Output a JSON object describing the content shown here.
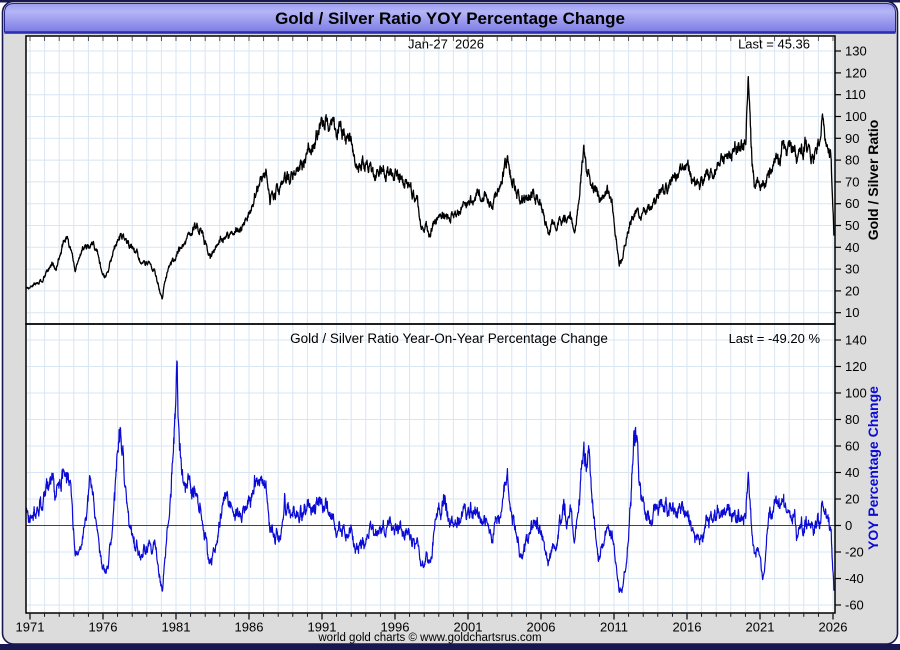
{
  "window": {
    "title": "Gold / Silver Ratio YOY Percentage Change"
  },
  "top_panel": {
    "date_annotation": "Jan-27  2026",
    "last_label": "Last = 45.36",
    "last_value": 45.36,
    "axis_title": "Gold / Silver Ratio",
    "y_ticks": [
      10,
      20,
      30,
      40,
      50,
      60,
      70,
      80,
      90,
      100,
      110,
      120,
      130
    ]
  },
  "bottom_panel": {
    "title": "Gold / Silver Ratio Year-On-Year Percentage Change",
    "last_label": "Last = -49.20 %",
    "last_value": -49.2,
    "axis_title": "YOY Percentage Change",
    "y_ticks": [
      -60,
      -40,
      -20,
      0,
      20,
      40,
      60,
      80,
      100,
      120,
      140
    ],
    "zero_line_value": 0
  },
  "x_axis": {
    "tick_years": [
      1971,
      1976,
      1981,
      1986,
      1991,
      1996,
      2001,
      2006,
      2011,
      2016,
      2021,
      2026
    ],
    "minor_tick_step_years": 1,
    "start_year": 1971,
    "end_year": 2026
  },
  "footer": "world gold charts © www.goldchartsrus.com",
  "colors": {
    "ratio_line": "#000000",
    "yoy_line": "#0b0bd6",
    "zero_line": "#e00000",
    "grid": "#d8e5f3",
    "panel_bg": "#ffffff",
    "window_bg": "#dcdcdc",
    "frame_edge": "#181850",
    "title_bar_top": "#9b9bf0",
    "title_bar_mid": "#b5b5f7",
    "title_bar_bottom": "#7c7ce4",
    "title_bar_edge": "#2e2eb0"
  },
  "chart_data": [
    {
      "type": "line",
      "name": "Gold / Silver Ratio",
      "panel": "top",
      "color": "#000000",
      "x_range": [
        1970.7,
        2026.08
      ],
      "ylim": [
        4.8,
        136.9
      ],
      "last": 45.36,
      "anchors": [
        [
          1969.4,
          18.5
        ],
        [
          1969.9,
          20
        ],
        [
          1970.45,
          21
        ],
        [
          1971.0,
          22
        ],
        [
          1971.4,
          23
        ],
        [
          1971.8,
          24.5
        ],
        [
          1972.2,
          29
        ],
        [
          1972.5,
          32
        ],
        [
          1972.8,
          30
        ],
        [
          1973.2,
          40
        ],
        [
          1973.5,
          45
        ],
        [
          1973.8,
          38
        ],
        [
          1974.1,
          30
        ],
        [
          1974.4,
          36
        ],
        [
          1974.7,
          41
        ],
        [
          1975.0,
          40
        ],
        [
          1975.3,
          43
        ],
        [
          1975.6,
          38
        ],
        [
          1975.9,
          30
        ],
        [
          1976.1,
          26
        ],
        [
          1976.4,
          31
        ],
        [
          1976.7,
          37
        ],
        [
          1977.0,
          42
        ],
        [
          1977.3,
          45.5
        ],
        [
          1977.6,
          43
        ],
        [
          1977.9,
          40
        ],
        [
          1978.3,
          37
        ],
        [
          1978.7,
          34
        ],
        [
          1979.1,
          33
        ],
        [
          1979.5,
          30
        ],
        [
          1979.8,
          23
        ],
        [
          1980.05,
          16
        ],
        [
          1980.3,
          26
        ],
        [
          1980.6,
          32
        ],
        [
          1980.9,
          34
        ],
        [
          1981.2,
          38
        ],
        [
          1981.5,
          41
        ],
        [
          1981.8,
          43
        ],
        [
          1982.1,
          46
        ],
        [
          1982.4,
          52
        ],
        [
          1982.7,
          49
        ],
        [
          1983.1,
          40
        ],
        [
          1983.35,
          35
        ],
        [
          1983.6,
          38
        ],
        [
          1983.9,
          42
        ],
        [
          1984.2,
          45
        ],
        [
          1984.6,
          44.5
        ],
        [
          1985.0,
          47
        ],
        [
          1985.3,
          48
        ],
        [
          1985.7,
          50
        ],
        [
          1986.1,
          57
        ],
        [
          1986.5,
          65
        ],
        [
          1986.9,
          70
        ],
        [
          1987.2,
          74
        ],
        [
          1987.45,
          62
        ],
        [
          1987.7,
          65
        ],
        [
          1988.0,
          67
        ],
        [
          1988.4,
          70
        ],
        [
          1988.8,
          72
        ],
        [
          1989.2,
          74
        ],
        [
          1989.6,
          77
        ],
        [
          1990.0,
          81
        ],
        [
          1990.4,
          87
        ],
        [
          1990.8,
          93
        ],
        [
          1991.1,
          99
        ],
        [
          1991.25,
          101
        ],
        [
          1991.5,
          94
        ],
        [
          1991.75,
          97
        ],
        [
          1992.0,
          93
        ],
        [
          1992.3,
          95
        ],
        [
          1992.6,
          91
        ],
        [
          1992.9,
          89
        ],
        [
          1993.2,
          84
        ],
        [
          1993.45,
          76
        ],
        [
          1993.7,
          79
        ],
        [
          1994.0,
          77
        ],
        [
          1994.4,
          75
        ],
        [
          1994.8,
          76
        ],
        [
          1995.2,
          77
        ],
        [
          1995.6,
          75
        ],
        [
          1996.0,
          74
        ],
        [
          1996.4,
          72
        ],
        [
          1996.8,
          70
        ],
        [
          1997.2,
          66
        ],
        [
          1997.5,
          62
        ],
        [
          1997.75,
          52
        ],
        [
          1997.95,
          46
        ],
        [
          1998.15,
          50
        ],
        [
          1998.35,
          44
        ],
        [
          1998.6,
          51
        ],
        [
          1998.9,
          55
        ],
        [
          1999.2,
          53
        ],
        [
          1999.5,
          56
        ],
        [
          1999.8,
          53
        ],
        [
          2000.1,
          55
        ],
        [
          2000.5,
          57
        ],
        [
          2000.9,
          60
        ],
        [
          2001.3,
          62
        ],
        [
          2001.7,
          65
        ],
        [
          2002.0,
          67
        ],
        [
          2002.3,
          64
        ],
        [
          2002.7,
          61
        ],
        [
          2003.0,
          67
        ],
        [
          2003.4,
          75
        ],
        [
          2003.7,
          80
        ],
        [
          2004.0,
          72
        ],
        [
          2004.3,
          66
        ],
        [
          2004.6,
          60
        ],
        [
          2004.9,
          62
        ],
        [
          2005.2,
          64
        ],
        [
          2005.5,
          66
        ],
        [
          2005.9,
          61
        ],
        [
          2006.2,
          54
        ],
        [
          2006.5,
          46
        ],
        [
          2006.8,
          51
        ],
        [
          2007.1,
          50
        ],
        [
          2007.5,
          53
        ],
        [
          2007.9,
          55
        ],
        [
          2008.3,
          49
        ],
        [
          2008.55,
          60
        ],
        [
          2008.75,
          75
        ],
        [
          2008.92,
          84
        ],
        [
          2009.1,
          76
        ],
        [
          2009.4,
          70
        ],
        [
          2009.7,
          66
        ],
        [
          2010.0,
          64
        ],
        [
          2010.3,
          62
        ],
        [
          2010.6,
          66
        ],
        [
          2010.9,
          58
        ],
        [
          2011.1,
          46
        ],
        [
          2011.35,
          32
        ],
        [
          2011.6,
          37
        ],
        [
          2011.85,
          46
        ],
        [
          2012.1,
          52
        ],
        [
          2012.4,
          56
        ],
        [
          2012.7,
          54
        ],
        [
          2013.1,
          55
        ],
        [
          2013.4,
          59
        ],
        [
          2013.7,
          61
        ],
        [
          2014.0,
          63
        ],
        [
          2014.4,
          66
        ],
        [
          2014.8,
          70
        ],
        [
          2015.2,
          72
        ],
        [
          2015.6,
          75
        ],
        [
          2015.95,
          78
        ],
        [
          2016.3,
          74
        ],
        [
          2016.55,
          67
        ],
        [
          2016.8,
          70
        ],
        [
          2017.1,
          71
        ],
        [
          2017.5,
          74
        ],
        [
          2017.9,
          77
        ],
        [
          2018.3,
          80
        ],
        [
          2018.7,
          82
        ],
        [
          2019.1,
          85
        ],
        [
          2019.4,
          89
        ],
        [
          2019.65,
          86
        ],
        [
          2019.9,
          88
        ],
        [
          2020.05,
          96
        ],
        [
          2020.2,
          123
        ],
        [
          2020.3,
          103
        ],
        [
          2020.45,
          80
        ],
        [
          2020.6,
          70
        ],
        [
          2020.85,
          73
        ],
        [
          2021.1,
          67
        ],
        [
          2021.35,
          68
        ],
        [
          2021.6,
          72
        ],
        [
          2021.85,
          78
        ],
        [
          2022.1,
          80
        ],
        [
          2022.35,
          77
        ],
        [
          2022.6,
          89
        ],
        [
          2022.85,
          84
        ],
        [
          2023.1,
          88
        ],
        [
          2023.35,
          82
        ],
        [
          2023.6,
          80
        ],
        [
          2023.85,
          86
        ],
        [
          2024.1,
          89
        ],
        [
          2024.35,
          84
        ],
        [
          2024.6,
          81
        ],
        [
          2024.85,
          86
        ],
        [
          2025.05,
          89
        ],
        [
          2025.28,
          104
        ],
        [
          2025.45,
          92
        ],
        [
          2025.6,
          89
        ],
        [
          2025.75,
          86
        ],
        [
          2025.88,
          80
        ],
        [
          2025.96,
          62
        ],
        [
          2026.06,
          45.36
        ]
      ]
    },
    {
      "type": "line",
      "name": "YOY Percentage Change",
      "panel": "bottom",
      "color": "#0b0bd6",
      "derived": "yoy_percent(t) = 100 * (ratio(t) / ratio(t - 1 year) - 1)",
      "ylim": [
        -66,
        152
      ],
      "last": -49.2,
      "zero_line": 0,
      "key_points": [
        [
          1972.4,
          40
        ],
        [
          1974.2,
          -25
        ],
        [
          1977.3,
          50
        ],
        [
          1980.05,
          -50
        ],
        [
          1981.05,
          134
        ],
        [
          1983.4,
          -38
        ],
        [
          1986.5,
          33
        ],
        [
          1987.4,
          -20
        ],
        [
          1993.5,
          -20
        ],
        [
          1997.95,
          -34
        ],
        [
          1998.35,
          -40
        ],
        [
          2003.6,
          20
        ],
        [
          2006.5,
          -26
        ],
        [
          2008.9,
          53
        ],
        [
          2011.35,
          -48
        ],
        [
          2012.4,
          70
        ],
        [
          2016.3,
          10
        ],
        [
          2020.2,
          43
        ],
        [
          2021.2,
          -45
        ],
        [
          2022.6,
          24
        ],
        [
          2025.28,
          18
        ],
        [
          2026.06,
          -49.2
        ]
      ]
    }
  ]
}
